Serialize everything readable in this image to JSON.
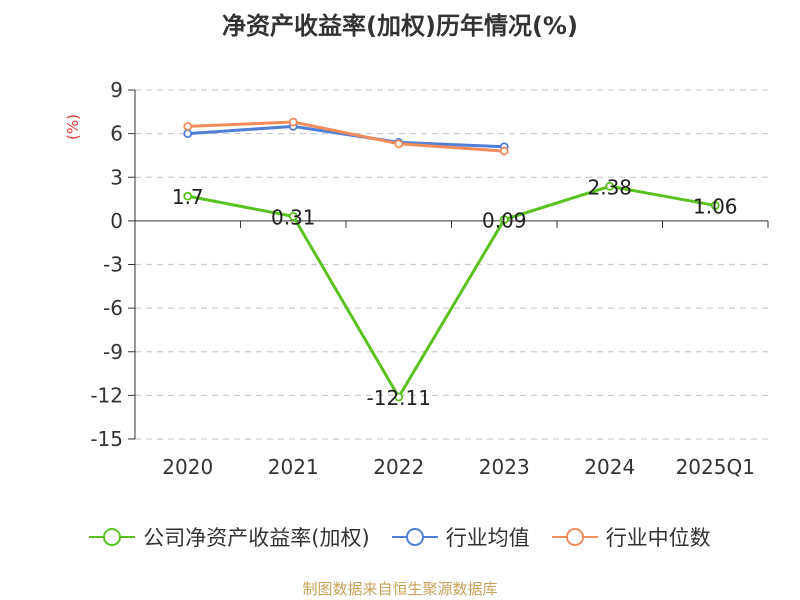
{
  "title": "净资产收益率(加权)历年情况(%)",
  "source": "制图数据来自恒生聚源数据库",
  "chart_data": {
    "type": "line",
    "ylabel": "(%)",
    "categories": [
      "2020",
      "2021",
      "2022",
      "2023",
      "2024",
      "2025Q1"
    ],
    "ylim": [
      -15,
      9
    ],
    "yticks": [
      9,
      6,
      3,
      0,
      -3,
      -6,
      -9,
      -12,
      -15
    ],
    "grid": true,
    "legend_position": "bottom",
    "series": [
      {
        "name": "公司净资产收益率(加权)",
        "color": "#5ac21f",
        "values": [
          1.7,
          0.31,
          -12.11,
          0.09,
          2.38,
          1.06
        ],
        "data_labels": [
          "1.7",
          "0.31",
          "-12.11",
          "0.09",
          "2.38",
          "1.06"
        ]
      },
      {
        "name": "行业均值",
        "color": "#4f7fd6",
        "values": [
          6.0,
          6.5,
          5.4,
          5.1,
          null,
          null
        ]
      },
      {
        "name": "行业中位数",
        "color": "#f28c5a",
        "values": [
          6.5,
          6.8,
          5.3,
          4.8,
          null,
          null
        ]
      }
    ]
  }
}
